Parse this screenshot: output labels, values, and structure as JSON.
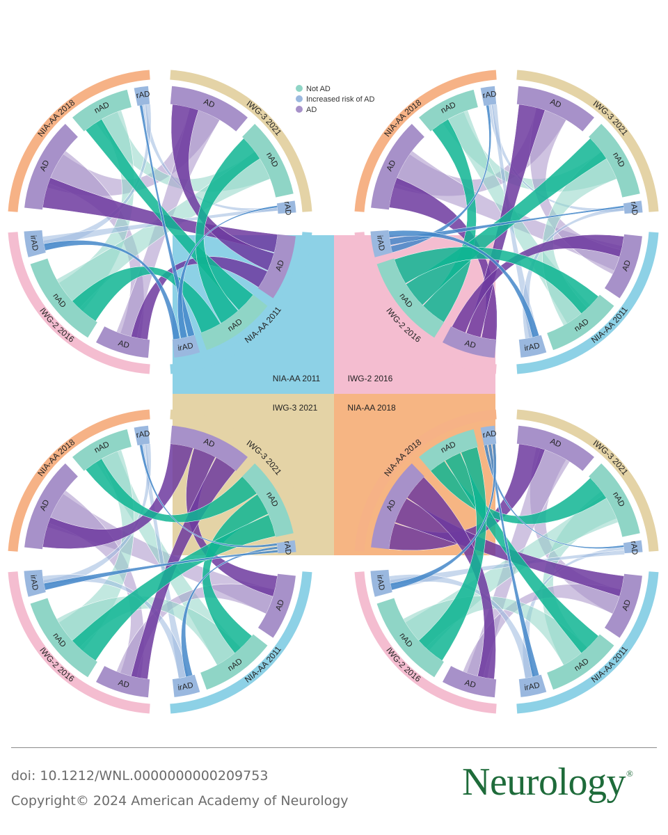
{
  "colors": {
    "nAD": "#8fd5c6",
    "irAD": "#9ab8df",
    "AD": "#a791c9",
    "nAD_strong": "#0fb593",
    "irAD_strong": "#4487c9",
    "AD_strong": "#6d3a9f",
    "ring_NIA_AA_2018": "#f6b286",
    "ring_IWG_3_2021": "#e4d3a6",
    "ring_NIA_AA_2011": "#8dd1e6",
    "ring_IWG_2_2016": "#f4bdd0"
  },
  "legend": {
    "items": [
      {
        "label": "Not AD",
        "color": "#8fd5c6"
      },
      {
        "label": "Increased risk of AD",
        "color": "#9ab8df"
      },
      {
        "label": "AD",
        "color": "#a791c9"
      }
    ]
  },
  "quadrant_labels": [
    "NIA-AA 2011",
    "IWG-2 2016",
    "IWG-3 2021",
    "NIA-AA 2018"
  ],
  "category_labels": {
    "nAD": "nAD",
    "irAD": "irAD",
    "AD": "AD"
  },
  "diagrams": [
    {
      "name": "chord-top-left",
      "highlight": "NIA-AA 2011",
      "groups": {
        "tl": "NIA-AA 2018",
        "tr": "IWG-3 2021",
        "br": "NIA-AA 2011",
        "bl": "IWG-2 2016"
      }
    },
    {
      "name": "chord-top-right",
      "highlight": "IWG-2 2016",
      "groups": {
        "tl": "NIA-AA 2018",
        "tr": "IWG-3 2021",
        "br": "NIA-AA 2011",
        "bl": "IWG-2 2016"
      }
    },
    {
      "name": "chord-bottom-left",
      "highlight": "IWG-3 2021",
      "groups": {
        "tl": "NIA-AA 2018",
        "tr": "IWG-3 2021",
        "br": "NIA-AA 2011",
        "bl": "IWG-2 2016"
      }
    },
    {
      "name": "chord-bottom-right",
      "highlight": "NIA-AA 2018",
      "groups": {
        "tl": "NIA-AA 2018",
        "tr": "IWG-3 2021",
        "br": "NIA-AA 2011",
        "bl": "IWG-2 2016"
      }
    }
  ],
  "footer": {
    "doi": "doi: 10.1212/WNL.0000000000209753",
    "copyright": "Copyright© 2024 American Academy of Neurology",
    "brand": "Neurology",
    "brand_mark": "®"
  }
}
